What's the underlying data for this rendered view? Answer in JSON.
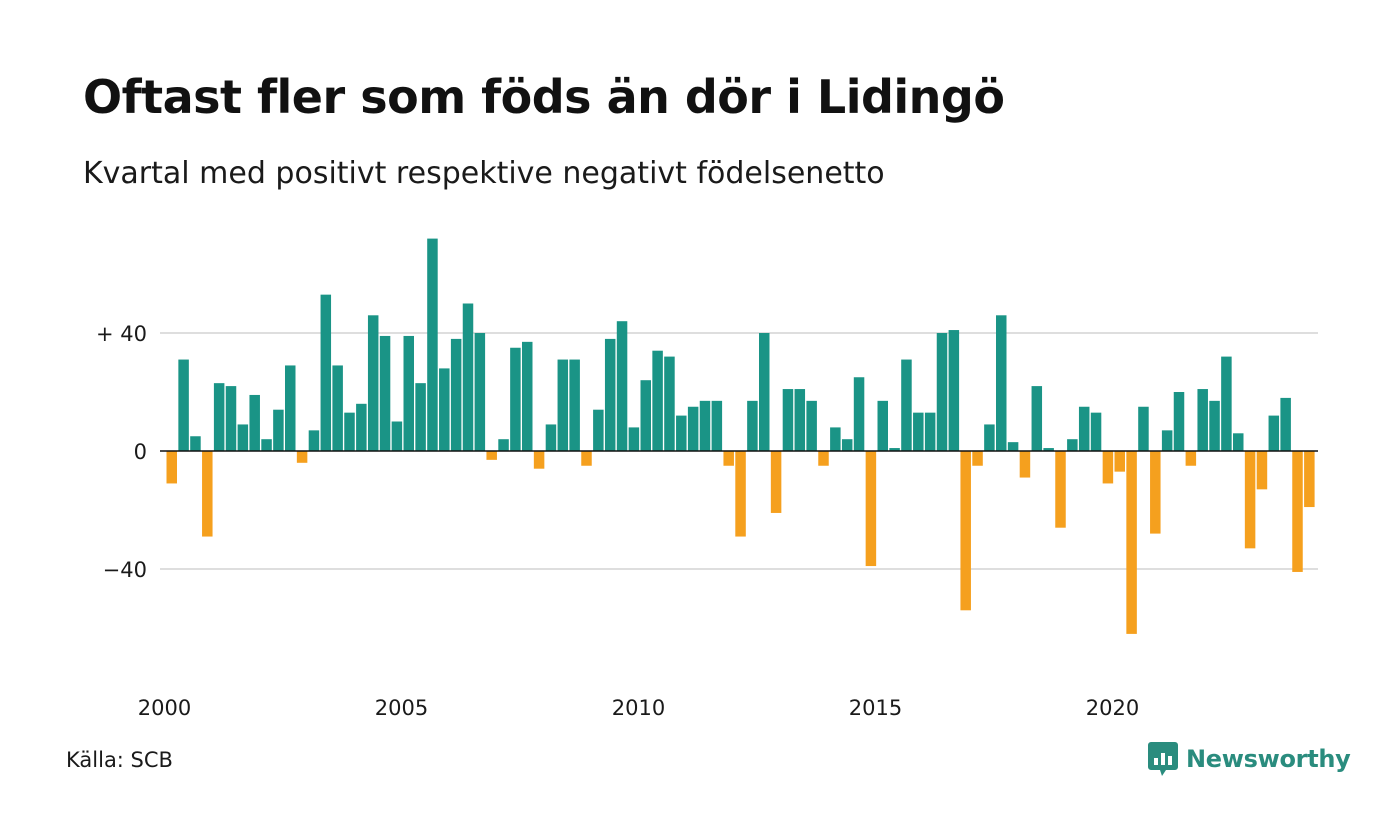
{
  "title": "Oftast fler som föds än dör i Lidingö",
  "subtitle": "Kvartal med positivt respektive negativt födelsenetto",
  "source": "Källa: SCB",
  "brand": "Newsworthy",
  "colors": {
    "positive": "#1a9486",
    "negative": "#f5a01e",
    "brand": "#2a8c7e"
  },
  "chart_data": {
    "type": "bar",
    "title": "Oftast fler som föds än dör i Lidingö",
    "subtitle": "Kvartal med positivt respektive negativt födelsenetto",
    "xlabel": "",
    "ylabel": "",
    "ylim": [
      -75,
      75
    ],
    "grid": true,
    "y_ticks": [
      {
        "value": 40,
        "label": "+ 40"
      },
      {
        "value": 0,
        "label": "0"
      },
      {
        "value": -40,
        "label": "−40"
      }
    ],
    "x_ticks": [
      "2000",
      "2005",
      "2010",
      "2015",
      "2020"
    ],
    "start": "2000 Q1",
    "values": [
      -11,
      31,
      5,
      -29,
      23,
      22,
      9,
      19,
      4,
      14,
      29,
      -4,
      7,
      53,
      29,
      13,
      16,
      46,
      39,
      10,
      39,
      23,
      72,
      28,
      38,
      50,
      40,
      -3,
      4,
      35,
      37,
      -6,
      9,
      31,
      31,
      -5,
      14,
      38,
      44,
      8,
      24,
      34,
      32,
      12,
      15,
      17,
      17,
      -5,
      -29,
      17,
      40,
      -21,
      21,
      21,
      17,
      -5,
      8,
      4,
      25,
      -39,
      17,
      1,
      31,
      13,
      13,
      40,
      41,
      -54,
      -5,
      9,
      46,
      3,
      -9,
      22,
      1,
      -26,
      4,
      15,
      13,
      -11,
      -7,
      -62,
      15,
      -28,
      7,
      20,
      -5,
      21,
      17,
      32,
      6,
      -33,
      -13,
      12,
      18,
      -41,
      -19
    ]
  }
}
